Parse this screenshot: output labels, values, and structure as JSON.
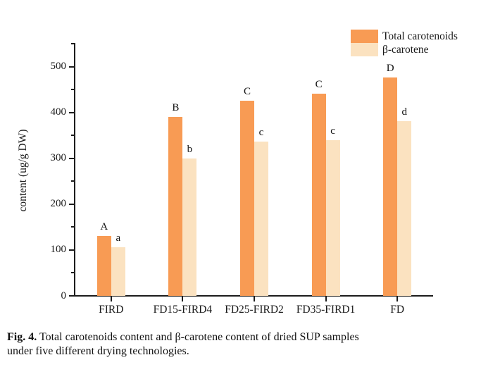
{
  "figure": {
    "caption_prefix": "Fig. 4.",
    "caption_line1": "Total carotenoids content and β-carotene content of dried SUP samples",
    "caption_line2": "under five different drying technologies."
  },
  "chart_data": {
    "type": "bar",
    "title": "",
    "xlabel": "",
    "ylabel": "content (ug/g DW)",
    "categories": [
      "FIRD",
      "FD15-FIRD4",
      "FD25-FIRD2",
      "FD35-FIRD1",
      "FD"
    ],
    "series": [
      {
        "name": "Total carotenoids",
        "color": "#f89b54",
        "values": [
          130,
          390,
          426,
          441,
          476
        ],
        "sig_letters": [
          "A",
          "B",
          "C",
          "C",
          "D"
        ]
      },
      {
        "name": "β-carotene",
        "color": "#fbe2c0",
        "values": [
          106,
          300,
          337,
          340,
          381
        ],
        "sig_letters": [
          "a",
          "b",
          "c",
          "c",
          "d"
        ]
      }
    ],
    "ylim": [
      0,
      550
    ],
    "ytick_step": 100,
    "yminor_step": 50,
    "ytick_labels": [
      "0",
      "100",
      "200",
      "300",
      "400",
      "500"
    ],
    "grid": false,
    "legend_position": "top-right",
    "axis_color": "#1c1c1c"
  }
}
